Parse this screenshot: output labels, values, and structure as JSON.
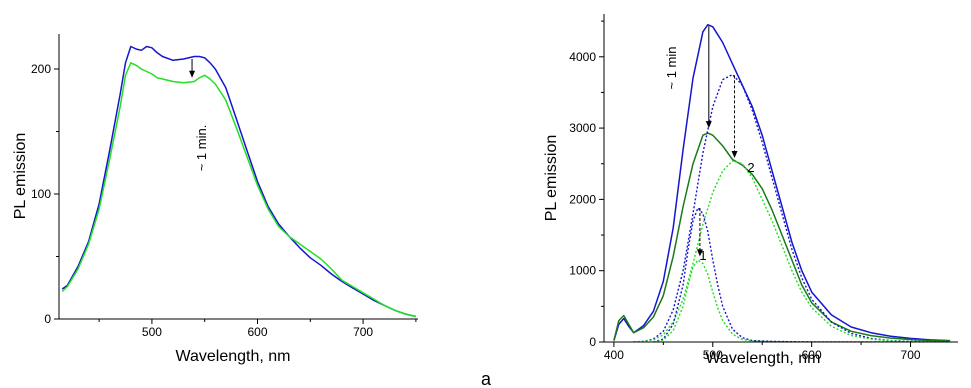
{
  "figure": {
    "panel_label": "a"
  },
  "chart_data": [
    {
      "type": "line",
      "xlabel": "Wavelength, nm",
      "ylabel": "PL emission",
      "xlim": [
        412,
        752
      ],
      "ylim": [
        0,
        228
      ],
      "xticks": [
        500,
        600,
        700
      ],
      "yticks": [
        0,
        100,
        200
      ],
      "grid": false,
      "annotation": "~ 1 min.",
      "arrow": {
        "x": 538,
        "from": 208,
        "to": 193
      },
      "series": [
        {
          "color": "#1515d0",
          "x": [
            415,
            420,
            430,
            440,
            450,
            460,
            470,
            475,
            480,
            485,
            490,
            495,
            500,
            505,
            510,
            520,
            530,
            540,
            545,
            550,
            555,
            560,
            570,
            580,
            590,
            600,
            610,
            620,
            630,
            640,
            650,
            660,
            670,
            680,
            690,
            700,
            710,
            720,
            730,
            740,
            750
          ],
          "y": [
            24,
            27,
            42,
            62,
            92,
            135,
            180,
            205,
            218,
            216,
            215,
            218,
            217,
            213,
            210,
            207,
            208,
            210,
            210,
            209,
            205,
            200,
            185,
            160,
            135,
            110,
            90,
            76,
            66,
            57,
            49,
            43,
            36,
            30,
            25,
            20,
            15,
            11,
            7,
            4,
            2
          ]
        },
        {
          "color": "#22e022",
          "x": [
            415,
            420,
            430,
            440,
            450,
            460,
            470,
            475,
            480,
            485,
            490,
            495,
            500,
            505,
            510,
            520,
            530,
            540,
            545,
            550,
            555,
            560,
            570,
            580,
            590,
            600,
            610,
            620,
            630,
            640,
            650,
            660,
            670,
            680,
            690,
            700,
            710,
            720,
            730,
            740,
            750
          ],
          "y": [
            22,
            26,
            40,
            60,
            88,
            128,
            170,
            195,
            205,
            203,
            200,
            198,
            196,
            193,
            192,
            190,
            189,
            190,
            193,
            195,
            192,
            188,
            175,
            153,
            130,
            107,
            88,
            74,
            66,
            60,
            54,
            48,
            40,
            31,
            26,
            21,
            16,
            11,
            7,
            4,
            2
          ]
        }
      ]
    },
    {
      "type": "line",
      "xlabel": "Wavelength, nm",
      "ylabel": "PL emission",
      "xlim": [
        390,
        748
      ],
      "ylim": [
        0,
        4600
      ],
      "xticks": [
        400,
        500,
        600,
        700
      ],
      "yticks": [
        0,
        1000,
        2000,
        3000,
        4000
      ],
      "grid": false,
      "annotations": [
        "~ 1 min",
        "2",
        "1"
      ],
      "arrows": [
        {
          "x": 496,
          "from": 4430,
          "to": 3000,
          "style": "solid"
        },
        {
          "x": 522,
          "from": 3740,
          "to": 2580,
          "style": "dashed"
        },
        {
          "x": 487,
          "from": 1880,
          "to": 1200,
          "style": "dashed"
        }
      ],
      "series": [
        {
          "color": "#1515d0",
          "style": "solid",
          "x": [
            400,
            405,
            410,
            415,
            420,
            430,
            440,
            450,
            460,
            470,
            480,
            490,
            495,
            500,
            510,
            520,
            530,
            540,
            550,
            560,
            570,
            580,
            590,
            600,
            620,
            640,
            660,
            680,
            700,
            720,
            740
          ],
          "y": [
            20,
            250,
            330,
            220,
            130,
            230,
            430,
            850,
            1600,
            2700,
            3700,
            4350,
            4450,
            4420,
            4200,
            3900,
            3600,
            3300,
            2900,
            2400,
            1900,
            1400,
            1000,
            700,
            380,
            210,
            130,
            80,
            50,
            30,
            20
          ]
        },
        {
          "color": "#1a7a1a",
          "style": "solid",
          "x": [
            400,
            405,
            410,
            415,
            420,
            430,
            440,
            450,
            460,
            470,
            480,
            490,
            495,
            500,
            510,
            520,
            530,
            540,
            550,
            560,
            570,
            580,
            590,
            600,
            620,
            640,
            660,
            680,
            700,
            720,
            740
          ],
          "y": [
            20,
            300,
            370,
            250,
            130,
            200,
            350,
            650,
            1200,
            1900,
            2500,
            2900,
            2930,
            2900,
            2750,
            2560,
            2480,
            2350,
            2150,
            1850,
            1500,
            1150,
            800,
            550,
            280,
            150,
            90,
            55,
            35,
            20,
            15
          ]
        },
        {
          "color": "#1515d0",
          "style": "dashed",
          "x": [
            420,
            430,
            440,
            450,
            460,
            470,
            480,
            490,
            500,
            510,
            520,
            530,
            540,
            550,
            560,
            570,
            580,
            590,
            600,
            620,
            640,
            660,
            680,
            700,
            720,
            740
          ],
          "y": [
            0,
            10,
            40,
            150,
            450,
            1000,
            1800,
            2650,
            3300,
            3680,
            3750,
            3600,
            3250,
            2800,
            2300,
            1800,
            1300,
            900,
            600,
            280,
            120,
            50,
            20,
            10,
            5,
            0
          ]
        },
        {
          "color": "#22dd22",
          "style": "dashed",
          "x": [
            420,
            430,
            440,
            450,
            460,
            470,
            480,
            490,
            500,
            510,
            520,
            530,
            540,
            550,
            560,
            570,
            580,
            590,
            600,
            620,
            640,
            660,
            680,
            700,
            720,
            740
          ],
          "y": [
            0,
            8,
            30,
            100,
            280,
            600,
            1100,
            1650,
            2100,
            2400,
            2540,
            2500,
            2300,
            2000,
            1700,
            1350,
            1000,
            700,
            480,
            220,
            90,
            40,
            15,
            8,
            4,
            0
          ]
        },
        {
          "color": "#1515d0",
          "style": "dashed",
          "x": [
            440,
            450,
            460,
            470,
            475,
            480,
            485,
            490,
            495,
            500,
            505,
            510,
            520,
            530,
            540,
            560,
            580,
            600,
            640,
            680,
            740
          ],
          "y": [
            0,
            40,
            250,
            800,
            1300,
            1700,
            1880,
            1800,
            1550,
            1150,
            800,
            500,
            180,
            60,
            20,
            8,
            4,
            2,
            0,
            0,
            0
          ]
        },
        {
          "color": "#22dd22",
          "style": "dashed",
          "x": [
            440,
            450,
            460,
            470,
            475,
            480,
            485,
            490,
            495,
            500,
            505,
            510,
            520,
            530,
            540,
            560,
            580,
            600,
            640,
            680,
            740
          ],
          "y": [
            0,
            25,
            160,
            500,
            800,
            1050,
            1150,
            1100,
            950,
            700,
            480,
            300,
            110,
            35,
            12,
            5,
            2,
            1,
            0,
            0,
            0
          ]
        }
      ]
    }
  ]
}
